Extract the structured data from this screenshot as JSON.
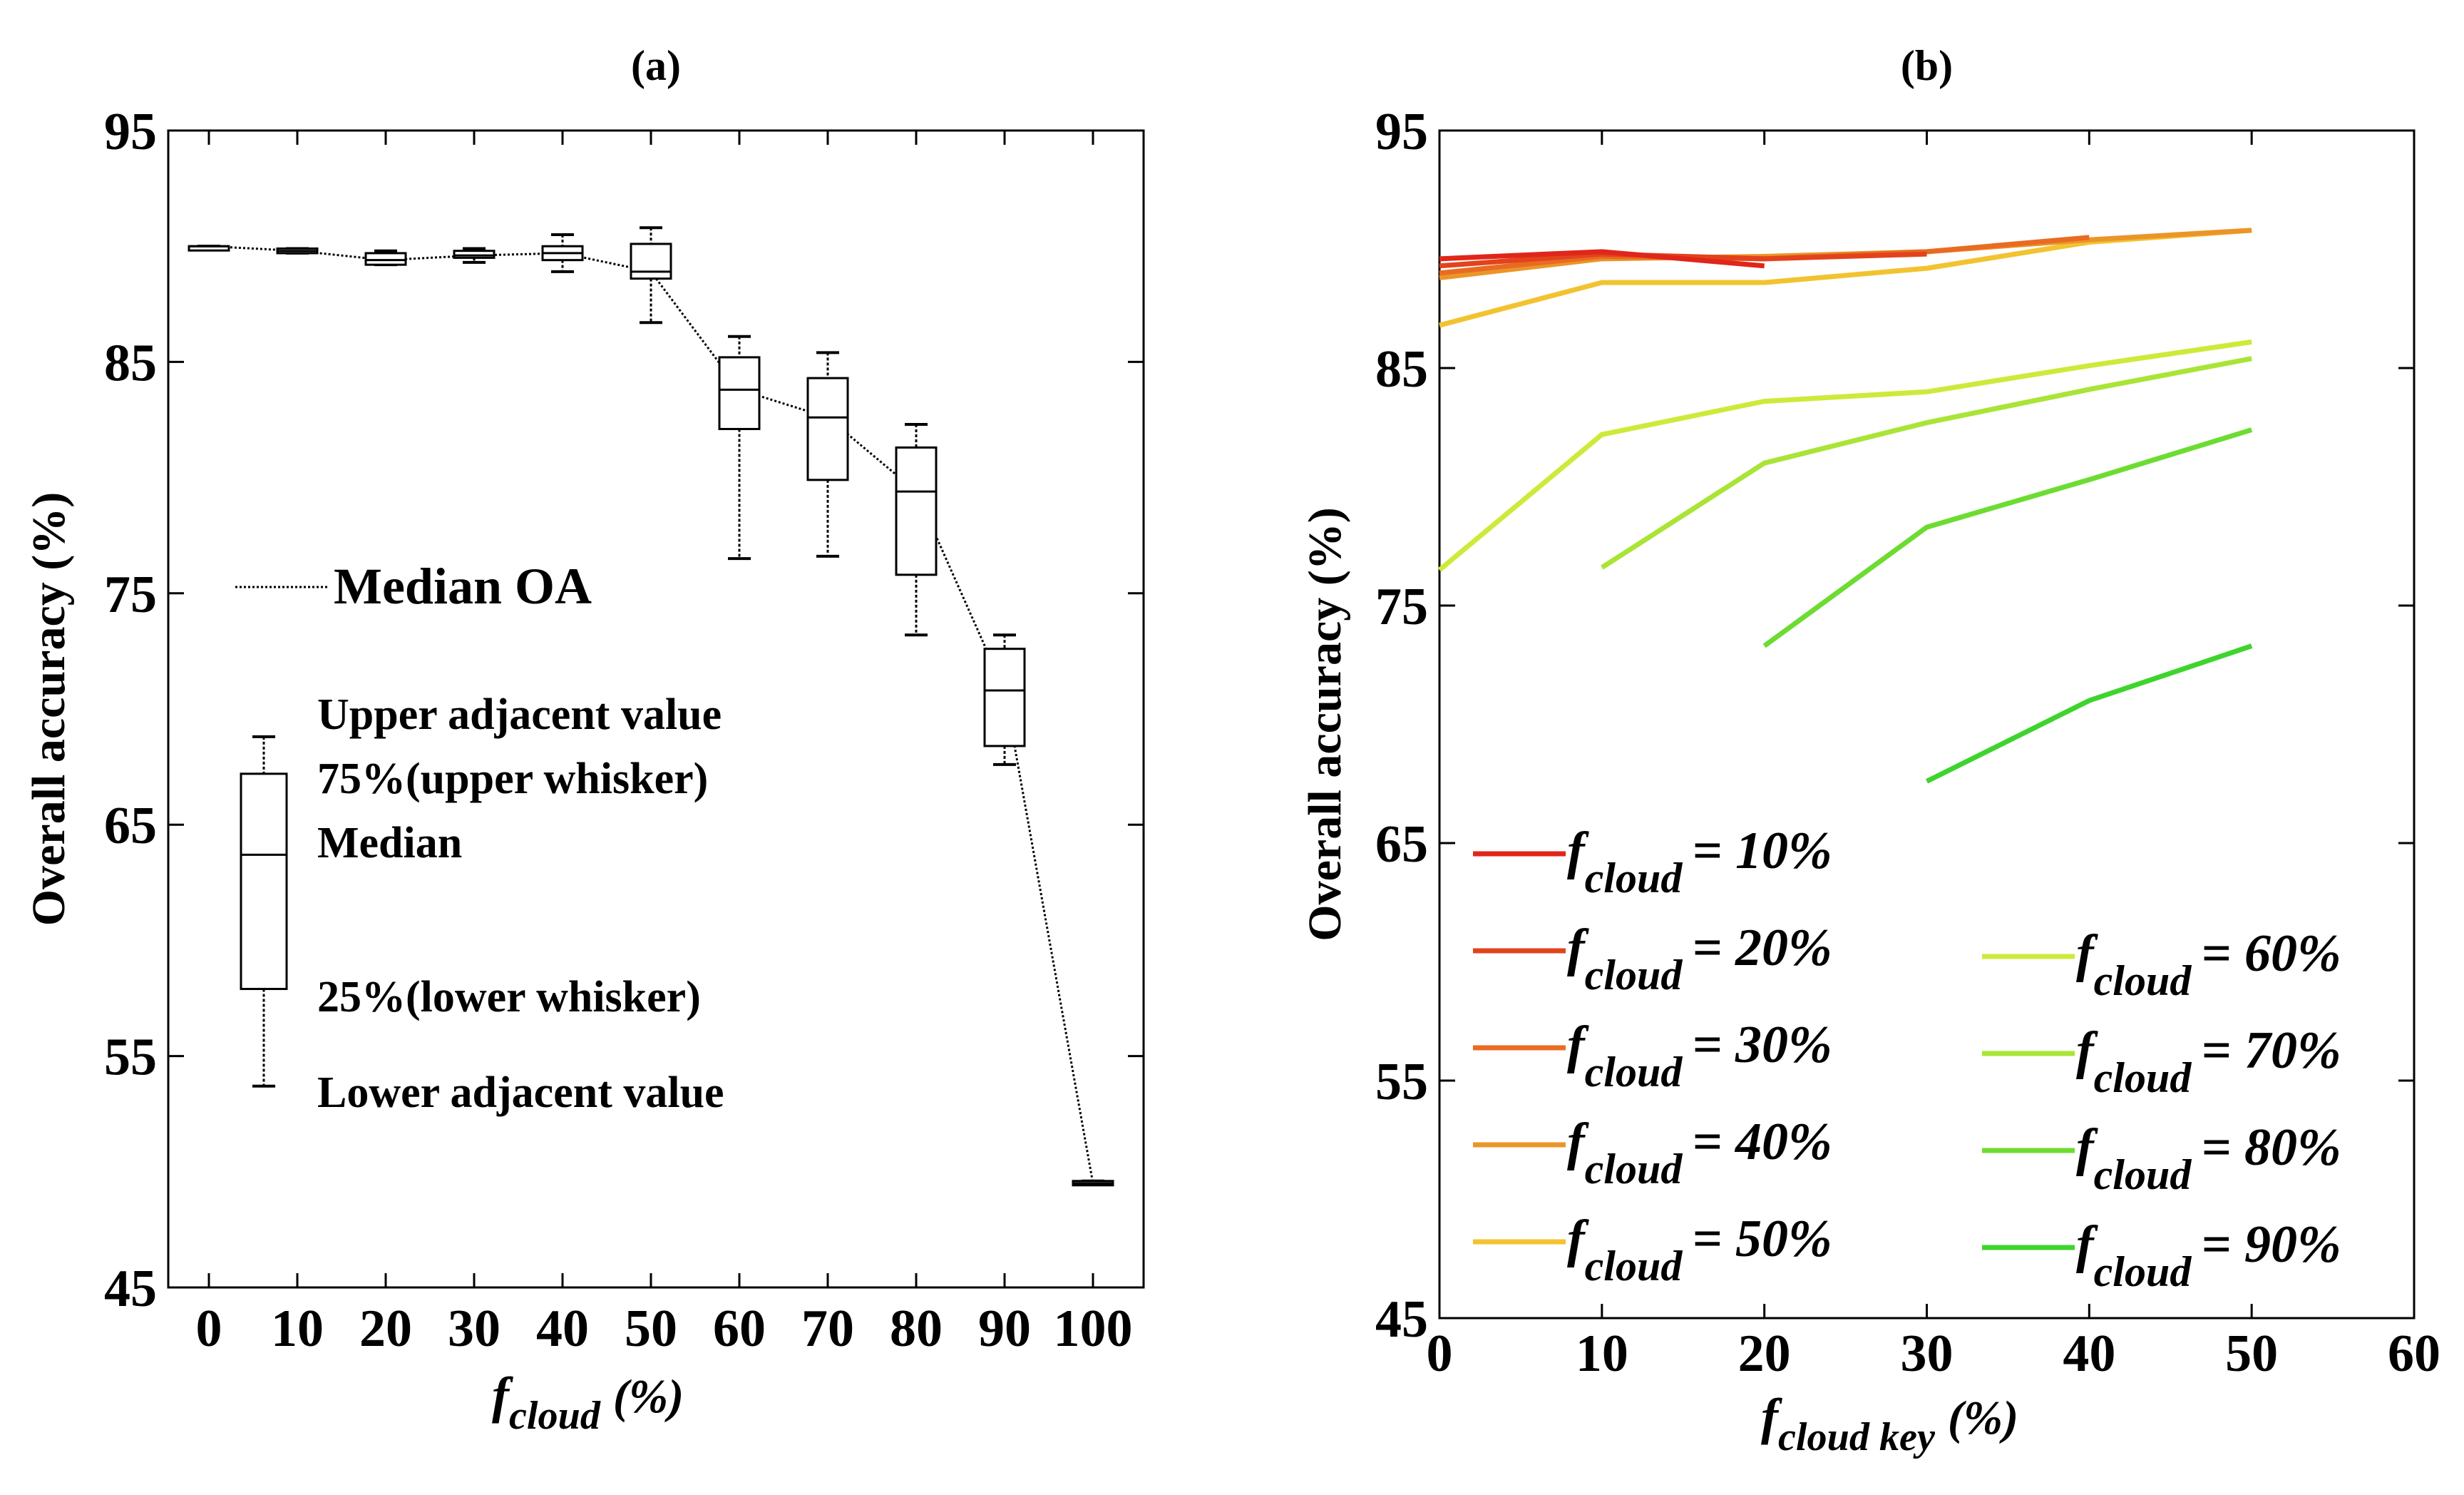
{
  "chart_data": [
    {
      "panel_label": "(a)",
      "type": "box",
      "xlabel_main": "f",
      "xlabel_sub": "cloud",
      "xlabel_suffix": "(%)",
      "ylabel": "Overall accuracy (%)",
      "x_ticks": [
        "0",
        "10",
        "20",
        "30",
        "40",
        "50",
        "60",
        "70",
        "80",
        "90",
        "100"
      ],
      "y_ticks": [
        "95",
        "85",
        "75",
        "65",
        "55",
        "45"
      ],
      "ylim": [
        45,
        95
      ],
      "boxes": [
        {
          "x": 0,
          "lower": 90.0,
          "q1": 90.0,
          "median": 90.0,
          "q3": 90.0,
          "upper": 90.0
        },
        {
          "x": 10,
          "lower": 89.7,
          "q1": 89.7,
          "median": 89.8,
          "q3": 89.9,
          "upper": 89.9
        },
        {
          "x": 20,
          "lower": 89.2,
          "q1": 89.2,
          "median": 89.4,
          "q3": 89.7,
          "upper": 89.8
        },
        {
          "x": 30,
          "lower": 89.3,
          "q1": 89.5,
          "median": 89.6,
          "q3": 89.8,
          "upper": 89.9
        },
        {
          "x": 40,
          "lower": 88.9,
          "q1": 89.4,
          "median": 89.7,
          "q3": 90.0,
          "upper": 90.5
        },
        {
          "x": 50,
          "lower": 86.7,
          "q1": 88.6,
          "median": 88.9,
          "q3": 90.1,
          "upper": 90.8
        },
        {
          "x": 60,
          "lower": 76.5,
          "q1": 82.1,
          "median": 83.8,
          "q3": 85.2,
          "upper": 86.1
        },
        {
          "x": 70,
          "lower": 76.6,
          "q1": 79.9,
          "median": 82.6,
          "q3": 84.3,
          "upper": 85.4
        },
        {
          "x": 80,
          "lower": 73.2,
          "q1": 75.8,
          "median": 79.4,
          "q3": 81.3,
          "upper": 82.3
        },
        {
          "x": 90,
          "lower": 67.6,
          "q1": 68.4,
          "median": 70.8,
          "q3": 72.6,
          "upper": 73.2
        },
        {
          "x": 100,
          "lower": 49.5,
          "q1": 49.5,
          "median": 49.5,
          "q3": 49.6,
          "upper": 49.6
        }
      ],
      "median_line_label": "Median OA",
      "legend_box": {
        "lower": 53.7,
        "q1": 57.9,
        "median": 63.7,
        "q3": 67.2,
        "upper": 68.8,
        "labels": {
          "upper_adjacent": "Upper adjacent value",
          "upper_whisker": "75%(upper whisker)",
          "median": "Median",
          "lower_whisker": "25%(lower whisker)",
          "lower_adjacent": "Lower adjacent value"
        }
      }
    },
    {
      "panel_label": "(b)",
      "type": "line",
      "xlabel_main": "f",
      "xlabel_sub": "cloud key",
      "xlabel_suffix": "(%)",
      "ylabel": "Overall accuracy (%)",
      "x_ticks": [
        "0",
        "10",
        "20",
        "30",
        "40",
        "50",
        "60"
      ],
      "y_ticks": [
        "95",
        "85",
        "75",
        "65",
        "55",
        "45"
      ],
      "xlim": [
        0,
        60
      ],
      "ylim": [
        45,
        95
      ],
      "series": [
        {
          "f": "f",
          "sub": "cloud",
          "eq": "= 10%",
          "color": "#e0261a",
          "x": [
            0,
            10,
            20
          ],
          "y": [
            89.6,
            89.9,
            89.3
          ]
        },
        {
          "f": "f",
          "sub": "cloud",
          "eq": "= 20%",
          "color": "#e2431c",
          "x": [
            0,
            10,
            20,
            30
          ],
          "y": [
            89.3,
            89.8,
            89.6,
            89.8
          ]
        },
        {
          "f": "f",
          "sub": "cloud",
          "eq": "= 30%",
          "color": "#e96b22",
          "x": [
            0,
            10,
            20,
            30,
            40
          ],
          "y": [
            89.0,
            89.7,
            89.6,
            89.9,
            90.5
          ]
        },
        {
          "f": "f",
          "sub": "cloud",
          "eq": "= 40%",
          "color": "#eb9528",
          "x": [
            0,
            10,
            20,
            30,
            40,
            50
          ],
          "y": [
            88.8,
            89.6,
            89.7,
            89.9,
            90.4,
            90.8
          ]
        },
        {
          "f": "f",
          "sub": "cloud",
          "eq": "= 50%",
          "color": "#f2c330",
          "x": [
            0,
            10,
            20,
            30,
            40,
            50
          ],
          "y": [
            86.8,
            88.6,
            88.6,
            89.2,
            90.3,
            90.8
          ]
        },
        {
          "f": "f",
          "sub": "cloud",
          "eq": "= 60%",
          "color": "#cfe93a",
          "x": [
            0,
            10,
            20,
            30,
            40,
            50
          ],
          "y": [
            76.5,
            82.2,
            83.6,
            84.0,
            85.1,
            86.1
          ]
        },
        {
          "f": "f",
          "sub": "cloud",
          "eq": "= 70%",
          "color": "#a9e436",
          "x": [
            10,
            20,
            30,
            40,
            50
          ],
          "y": [
            76.6,
            81.0,
            82.7,
            84.1,
            85.4
          ]
        },
        {
          "f": "f",
          "sub": "cloud",
          "eq": "= 80%",
          "color": "#6ddc32",
          "x": [
            20,
            30,
            40,
            50
          ],
          "y": [
            73.3,
            78.3,
            80.3,
            82.4
          ]
        },
        {
          "f": "f",
          "sub": "cloud",
          "eq": "= 90%",
          "color": "#3ed42e",
          "x": [
            30,
            40,
            50
          ],
          "y": [
            67.6,
            71.0,
            73.3
          ]
        }
      ]
    }
  ]
}
